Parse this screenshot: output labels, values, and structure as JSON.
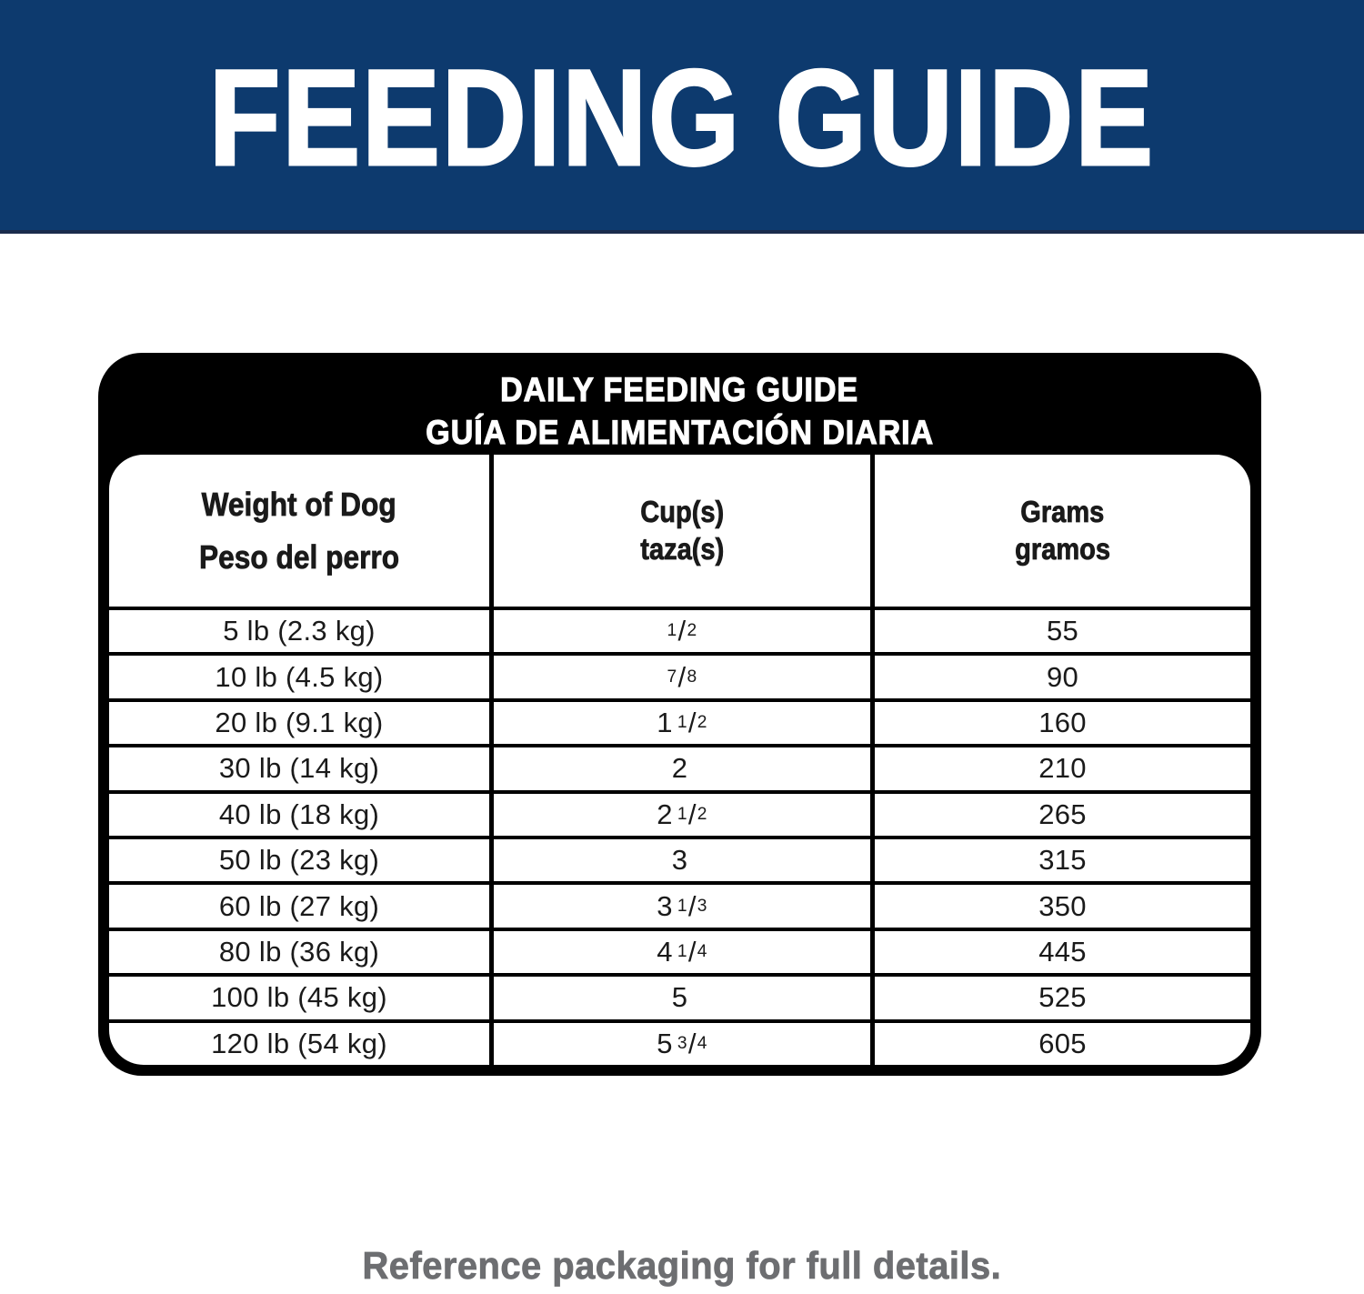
{
  "banner": {
    "title": "FEEDING GUIDE",
    "bg_color": "#0d3a6e",
    "text_color": "#ffffff"
  },
  "panel": {
    "bg_color": "#000000",
    "title_en": "DAILY FEEDING GUIDE",
    "title_es": "GUÍA DE ALIMENTACIÓN DIARIA",
    "table": {
      "headers": [
        {
          "en": "Weight of Dog",
          "es": "Peso del perro"
        },
        {
          "en": "Cup(s)",
          "es": "taza(s)"
        },
        {
          "en": "Grams",
          "es": "gramos"
        }
      ],
      "rows": [
        {
          "weight": "5 lb (2.3 kg)",
          "cups": {
            "whole": "",
            "num": "1",
            "den": "2"
          },
          "grams": "55"
        },
        {
          "weight": "10 lb (4.5 kg)",
          "cups": {
            "whole": "",
            "num": "7",
            "den": "8"
          },
          "grams": "90"
        },
        {
          "weight": "20 lb (9.1 kg)",
          "cups": {
            "whole": "1",
            "num": "1",
            "den": "2"
          },
          "grams": "160"
        },
        {
          "weight": "30 lb (14 kg)",
          "cups": {
            "whole": "2",
            "num": "",
            "den": ""
          },
          "grams": "210"
        },
        {
          "weight": "40 lb (18 kg)",
          "cups": {
            "whole": "2",
            "num": "1",
            "den": "2"
          },
          "grams": "265"
        },
        {
          "weight": "50 lb (23 kg)",
          "cups": {
            "whole": "3",
            "num": "",
            "den": ""
          },
          "grams": "315"
        },
        {
          "weight": "60 lb (27 kg)",
          "cups": {
            "whole": "3",
            "num": "1",
            "den": "3"
          },
          "grams": "350"
        },
        {
          "weight": "80 lb (36 kg)",
          "cups": {
            "whole": "4",
            "num": "1",
            "den": "4"
          },
          "grams": "445"
        },
        {
          "weight": "100 lb (45 kg)",
          "cups": {
            "whole": "5",
            "num": "",
            "den": ""
          },
          "grams": "525"
        },
        {
          "weight": "120 lb (54 kg)",
          "cups": {
            "whole": "5",
            "num": "3",
            "den": "4"
          },
          "grams": "605"
        }
      ]
    }
  },
  "footer": {
    "note": "Reference packaging for full details.",
    "text_color": "#6d6e71"
  }
}
